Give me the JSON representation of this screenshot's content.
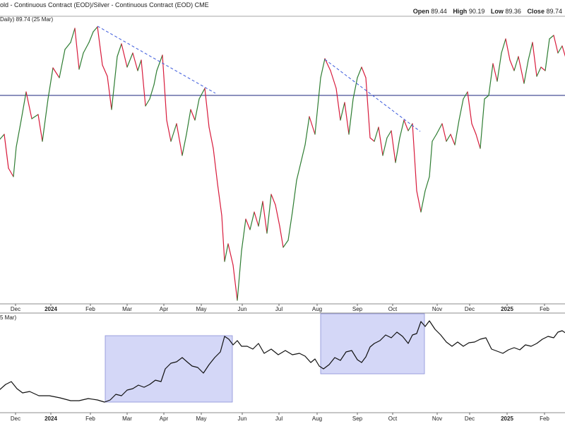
{
  "header": {
    "title": "old - Continuous Contract (EOD)/Silver - Continuous Contract (EOD)",
    "exchange": "CME",
    "ohlc": [
      {
        "label": "Open",
        "value": "89.44"
      },
      {
        "label": "High",
        "value": "90.19"
      },
      {
        "label": "Low",
        "value": "89.36"
      },
      {
        "label": "Close",
        "value": "89.74"
      }
    ]
  },
  "top_pane": {
    "label": "Daily) 89.74 (25 Mar)"
  },
  "bottom_pane": {
    "label": "5 Mar)"
  },
  "chart_data": [
    {
      "type": "line",
      "name": "price_pane",
      "x_ticks": [
        {
          "label": "Dec",
          "bold": false
        },
        {
          "label": "2024",
          "bold": true
        },
        {
          "label": "Feb",
          "bold": false
        },
        {
          "label": "Mar",
          "bold": false
        },
        {
          "label": "Apr",
          "bold": false
        },
        {
          "label": "May",
          "bold": false
        },
        {
          "label": "Jun",
          "bold": false
        },
        {
          "label": "Jul",
          "bold": false
        },
        {
          "label": "Aug",
          "bold": false
        },
        {
          "label": "Sep",
          "bold": false
        },
        {
          "label": "Oct",
          "bold": false
        },
        {
          "label": "Nov",
          "bold": false
        },
        {
          "label": "Dec",
          "bold": false
        },
        {
          "label": "2025",
          "bold": true
        },
        {
          "label": "Feb",
          "bold": false
        }
      ],
      "colors": {
        "up": "#2e7d32",
        "down": "#d81b3c",
        "hline": "#1a237e",
        "trend": "#3c5adc"
      },
      "horizontal_line": {
        "y": 135
      },
      "trendlines": [
        {
          "x1": 138,
          "y1": 37,
          "x2": 305,
          "y2": 132
        },
        {
          "x1": 460,
          "y1": 84,
          "x2": 595,
          "y2": 186
        }
      ],
      "series": [
        [
          -1,
          198
        ],
        [
          6,
          190
        ],
        [
          12,
          238
        ],
        [
          19,
          250
        ],
        [
          23,
          208
        ],
        [
          30,
          170
        ],
        [
          37,
          130
        ],
        [
          45,
          168
        ],
        [
          54,
          162
        ],
        [
          60,
          200
        ],
        [
          68,
          140
        ],
        [
          75,
          96
        ],
        [
          84,
          110
        ],
        [
          92,
          70
        ],
        [
          100,
          60
        ],
        [
          106,
          40
        ],
        [
          112,
          98
        ],
        [
          118,
          75
        ],
        [
          126,
          60
        ],
        [
          132,
          45
        ],
        [
          138,
          38
        ],
        [
          145,
          92
        ],
        [
          152,
          108
        ],
        [
          158,
          155
        ],
        [
          166,
          80
        ],
        [
          172,
          62
        ],
        [
          180,
          95
        ],
        [
          188,
          75
        ],
        [
          195,
          100
        ],
        [
          200,
          85
        ],
        [
          206,
          150
        ],
        [
          212,
          140
        ],
        [
          218,
          120
        ],
        [
          222,
          100
        ],
        [
          230,
          78
        ],
        [
          236,
          170
        ],
        [
          242,
          200
        ],
        [
          250,
          175
        ],
        [
          258,
          220
        ],
        [
          264,
          190
        ],
        [
          270,
          155
        ],
        [
          276,
          170
        ],
        [
          282,
          140
        ],
        [
          290,
          125
        ],
        [
          296,
          180
        ],
        [
          302,
          210
        ],
        [
          308,
          260
        ],
        [
          314,
          305
        ],
        [
          318,
          370
        ],
        [
          323,
          345
        ],
        [
          330,
          375
        ],
        [
          336,
          425
        ],
        [
          342,
          355
        ],
        [
          348,
          310
        ],
        [
          354,
          325
        ],
        [
          360,
          300
        ],
        [
          366,
          320
        ],
        [
          372,
          285
        ],
        [
          378,
          330
        ],
        [
          384,
          275
        ],
        [
          390,
          290
        ],
        [
          396,
          320
        ],
        [
          401,
          350
        ],
        [
          408,
          340
        ],
        [
          414,
          300
        ],
        [
          420,
          255
        ],
        [
          426,
          230
        ],
        [
          432,
          205
        ],
        [
          438,
          165
        ],
        [
          446,
          190
        ],
        [
          454,
          110
        ],
        [
          460,
          83
        ],
        [
          468,
          100
        ],
        [
          476,
          125
        ],
        [
          482,
          170
        ],
        [
          488,
          145
        ],
        [
          494,
          190
        ],
        [
          500,
          140
        ],
        [
          506,
          110
        ],
        [
          512,
          95
        ],
        [
          518,
          110
        ],
        [
          524,
          195
        ],
        [
          530,
          200
        ],
        [
          536,
          180
        ],
        [
          542,
          220
        ],
        [
          548,
          195
        ],
        [
          554,
          185
        ],
        [
          560,
          230
        ],
        [
          566,
          195
        ],
        [
          572,
          170
        ],
        [
          578,
          185
        ],
        [
          584,
          175
        ],
        [
          590,
          270
        ],
        [
          596,
          300
        ],
        [
          602,
          270
        ],
        [
          608,
          250
        ],
        [
          612,
          200
        ],
        [
          618,
          190
        ],
        [
          626,
          175
        ],
        [
          632,
          200
        ],
        [
          638,
          190
        ],
        [
          644,
          205
        ],
        [
          650,
          170
        ],
        [
          656,
          140
        ],
        [
          662,
          130
        ],
        [
          668,
          175
        ],
        [
          674,
          190
        ],
        [
          680,
          210
        ],
        [
          686,
          140
        ],
        [
          692,
          135
        ],
        [
          698,
          90
        ],
        [
          704,
          115
        ],
        [
          710,
          75
        ],
        [
          716,
          55
        ],
        [
          722,
          85
        ],
        [
          728,
          100
        ],
        [
          734,
          80
        ],
        [
          742,
          118
        ],
        [
          748,
          85
        ],
        [
          754,
          60
        ],
        [
          760,
          108
        ],
        [
          766,
          95
        ],
        [
          772,
          100
        ],
        [
          778,
          55
        ],
        [
          784,
          50
        ],
        [
          790,
          75
        ],
        [
          796,
          65
        ],
        [
          802,
          85
        ]
      ]
    },
    {
      "type": "line",
      "name": "ratio_pane",
      "x_ticks": [
        {
          "label": "Dec",
          "bold": false
        },
        {
          "label": "2024",
          "bold": true
        },
        {
          "label": "Feb",
          "bold": false
        },
        {
          "label": "Mar",
          "bold": false
        },
        {
          "label": "Apr",
          "bold": false
        },
        {
          "label": "May",
          "bold": false
        },
        {
          "label": "Jun",
          "bold": false
        },
        {
          "label": "Jul",
          "bold": false
        },
        {
          "label": "Aug",
          "bold": false
        },
        {
          "label": "Sep",
          "bold": false
        },
        {
          "label": "Oct",
          "bold": false
        },
        {
          "label": "Nov",
          "bold": false
        },
        {
          "label": "Dec",
          "bold": false
        },
        {
          "label": "2025",
          "bold": true
        },
        {
          "label": "Feb",
          "bold": false
        }
      ],
      "colors": {
        "line": "#111111",
        "highlight_fill": "#c5c9f4",
        "highlight_stroke": "#8a90d8"
      },
      "highlight_boxes": [
        {
          "x1": 149,
          "y1": 475,
          "x2": 329,
          "y2": 569
        },
        {
          "x1": 454,
          "y1": 444,
          "x2": 601,
          "y2": 529
        }
      ],
      "series": [
        [
          -1,
          552
        ],
        [
          8,
          544
        ],
        [
          16,
          540
        ],
        [
          24,
          550
        ],
        [
          32,
          556
        ],
        [
          42,
          554
        ],
        [
          55,
          560
        ],
        [
          70,
          560
        ],
        [
          85,
          563
        ],
        [
          100,
          567
        ],
        [
          112,
          567
        ],
        [
          125,
          564
        ],
        [
          138,
          566
        ],
        [
          148,
          569
        ],
        [
          156,
          566
        ],
        [
          164,
          558
        ],
        [
          172,
          560
        ],
        [
          180,
          552
        ],
        [
          188,
          550
        ],
        [
          196,
          545
        ],
        [
          204,
          548
        ],
        [
          212,
          544
        ],
        [
          220,
          538
        ],
        [
          228,
          540
        ],
        [
          234,
          522
        ],
        [
          242,
          514
        ],
        [
          250,
          512
        ],
        [
          258,
          506
        ],
        [
          266,
          513
        ],
        [
          272,
          518
        ],
        [
          280,
          520
        ],
        [
          288,
          528
        ],
        [
          296,
          516
        ],
        [
          304,
          506
        ],
        [
          312,
          498
        ],
        [
          318,
          476
        ],
        [
          324,
          480
        ],
        [
          330,
          488
        ],
        [
          336,
          482
        ],
        [
          342,
          490
        ],
        [
          350,
          490
        ],
        [
          358,
          494
        ],
        [
          366,
          486
        ],
        [
          374,
          500
        ],
        [
          384,
          494
        ],
        [
          394,
          502
        ],
        [
          404,
          496
        ],
        [
          414,
          502
        ],
        [
          424,
          500
        ],
        [
          432,
          504
        ],
        [
          440,
          513
        ],
        [
          446,
          508
        ],
        [
          452,
          518
        ],
        [
          458,
          522
        ],
        [
          466,
          516
        ],
        [
          474,
          506
        ],
        [
          482,
          510
        ],
        [
          490,
          498
        ],
        [
          498,
          496
        ],
        [
          506,
          509
        ],
        [
          512,
          513
        ],
        [
          518,
          505
        ],
        [
          524,
          491
        ],
        [
          530,
          486
        ],
        [
          538,
          482
        ],
        [
          546,
          474
        ],
        [
          554,
          478
        ],
        [
          562,
          470
        ],
        [
          570,
          476
        ],
        [
          578,
          486
        ],
        [
          584,
          474
        ],
        [
          590,
          472
        ],
        [
          596,
          455
        ],
        [
          602,
          462
        ],
        [
          608,
          454
        ],
        [
          616,
          466
        ],
        [
          624,
          474
        ],
        [
          632,
          484
        ],
        [
          640,
          490
        ],
        [
          648,
          484
        ],
        [
          656,
          490
        ],
        [
          664,
          485
        ],
        [
          672,
          484
        ],
        [
          680,
          480
        ],
        [
          688,
          478
        ],
        [
          696,
          494
        ],
        [
          704,
          497
        ],
        [
          712,
          500
        ],
        [
          720,
          495
        ],
        [
          728,
          492
        ],
        [
          736,
          495
        ],
        [
          744,
          488
        ],
        [
          752,
          490
        ],
        [
          760,
          486
        ],
        [
          768,
          480
        ],
        [
          776,
          476
        ],
        [
          784,
          478
        ],
        [
          790,
          470
        ],
        [
          796,
          468
        ],
        [
          802,
          472
        ]
      ]
    }
  ]
}
